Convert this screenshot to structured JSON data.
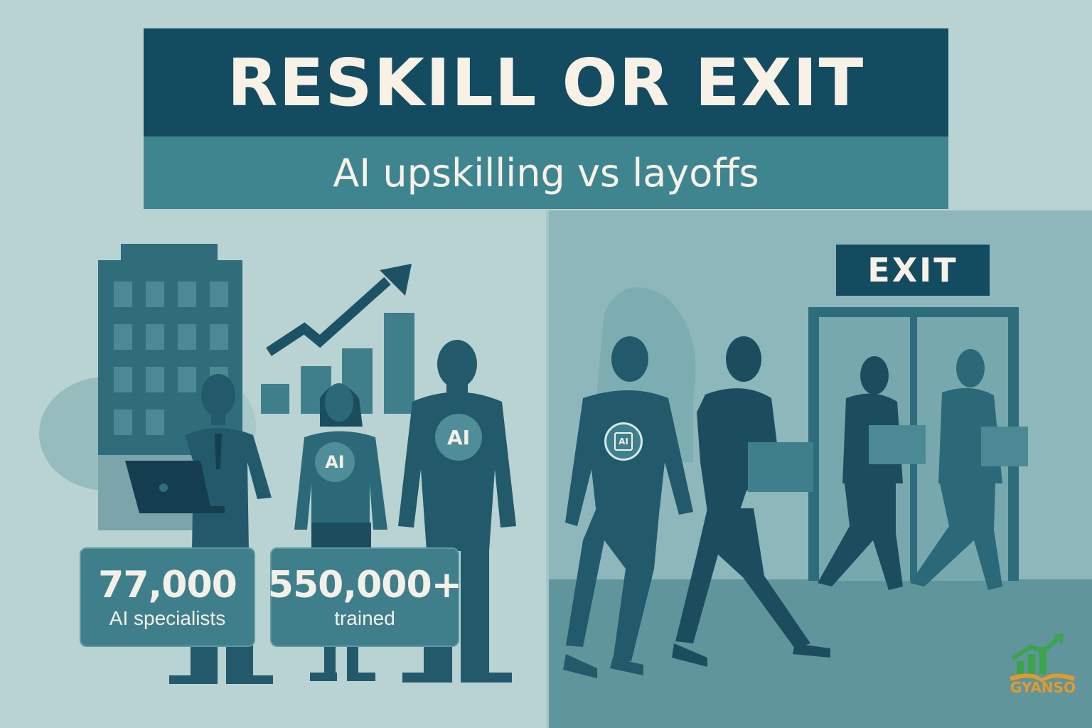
{
  "header": {
    "title": "RESKILL OR EXIT",
    "subtitle": "AI upskilling vs layoffs"
  },
  "left_panel": {
    "badges": [
      "AI",
      "AI"
    ],
    "stats": [
      {
        "value": "77,000",
        "label": "AI specialists"
      },
      {
        "value": "550,000+",
        "label": "trained"
      }
    ]
  },
  "right_panel": {
    "exit_sign": "EXIT",
    "shirt_chip": "AI"
  },
  "logo": {
    "text": "GYANSO",
    "colors": {
      "green": "#3aa54a",
      "orange": "#e39a2d"
    }
  },
  "colors": {
    "navy": "#134b61",
    "teal": "#3e8590",
    "background_left": "#b9d3d2",
    "background_right": "#8db7bb",
    "cream_text": "#f7f1e6"
  }
}
